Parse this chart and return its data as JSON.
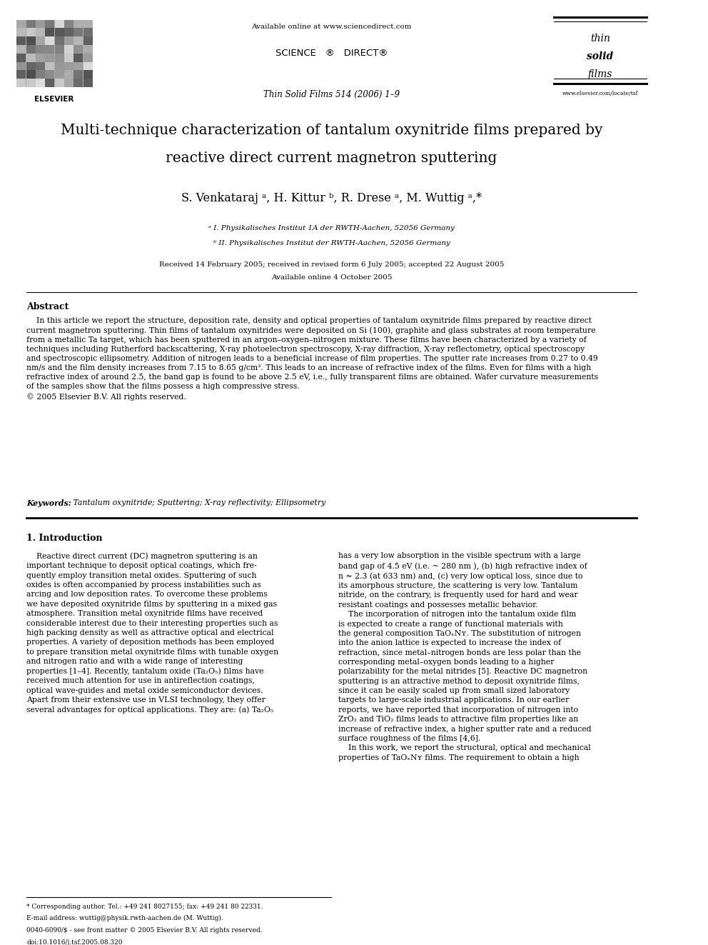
{
  "page_width": 9.92,
  "page_height": 13.23,
  "bg_color": "#ffffff",
  "top_text": "Available online at www.sciencedirect.com",
  "science_direct": "SCIENCE   ®  DIRECT®",
  "journal_ref": "Thin Solid Films 514 (2006) 1–9",
  "title_line1": "Multi-technique characterization of tantalum oxynitride films prepared by",
  "title_line2": "reactive direct current magnetron sputtering",
  "authors": "S. Venkataraj ᵃ, H. Kittur ᵇ, R. Drese ᵃ, M. Wuttig ᵃ,*",
  "affil_a": "ᵃ I. Physikalisches Institut 1A der RWTH-Aachen, 52056 Germany",
  "affil_b": "ᵇ II. Physikalisches Institut der RWTH-Aachen, 52056 Germany",
  "received": "Received 14 February 2005; received in revised form 6 July 2005; accepted 22 August 2005",
  "available": "Available online 4 October 2005",
  "abstract_title": "Abstract",
  "abstract_body": "    In this article we report the structure, deposition rate, density and optical properties of tantalum oxynitride films prepared by reactive direct\ncurrent magnetron sputtering. Thin films of tantalum oxynitrides were deposited on Si (100), graphite and glass substrates at room temperature\nfrom a metallic Ta target, which has been sputtered in an argon–oxygen–nitrogen mixture. These films have been characterized by a variety of\ntechniques including Rutherford backscattering, X-ray photoelectron spectroscopy, X-ray diffraction, X-ray reflectometry, optical spectroscopy\nand spectroscopic ellipsometry. Addition of nitrogen leads to a beneficial increase of film properties. The sputter rate increases from 0.27 to 0.49\nnm/s and the film density increases from 7.15 to 8.65 g/cm³. This leads to an increase of refractive index of the films. Even for films with a high\nrefractive index of around 2.5, the band gap is found to be above 2.5 eV, i.e., fully transparent films are obtained. Wafer curvature measurements\nof the samples show that the films possess a high compressive stress.\n© 2005 Elsevier B.V. All rights reserved.",
  "keywords_label": "Keywords:",
  "keywords_text": " Tantalum oxynitride; Sputtering; X-ray reflectivity; Ellipsometry",
  "section1_title": "1. Introduction",
  "intro_col1": "    Reactive direct current (DC) magnetron sputtering is an\nimportant technique to deposit optical coatings, which fre-\nquently employ transition metal oxides. Sputtering of such\noxides is often accompanied by process instabilities such as\narcing and low deposition rates. To overcome these problems\nwe have deposited oxynitride films by sputtering in a mixed gas\natmosphere. Transition metal oxynitride films have received\nconsiderable interest due to their interesting properties such as\nhigh packing density as well as attractive optical and electrical\nproperties. A variety of deposition methods has been employed\nto prepare transition metal oxynitride films with tunable oxygen\nand nitrogen ratio and with a wide range of interesting\nproperties [1–4]. Recently, tantalum oxide (Ta₂O₅) films have\nreceived much attention for use in antireflection coatings,\noptical wave-guides and metal oxide semiconductor devices.\nApart from their extensive use in VLSI technology, they offer\nseveral advantages for optical applications. They are: (a) Ta₂O₅",
  "intro_col2": "has a very low absorption in the visible spectrum with a large\nband gap of 4.5 eV (i.e. ~ 280 nm ), (b) high refractive index of\nn ≈ 2.3 (at 633 nm) and, (c) very low optical loss, since due to\nits amorphous structure, the scattering is very low. Tantalum\nnitride, on the contrary, is frequently used for hard and wear\nresistant coatings and possesses metallic behavior.\n    The incorporation of nitrogen into the tantalum oxide film\nis expected to create a range of functional materials with\nthe general composition TaOₓNʏ. The substitution of nitrogen\ninto the anion lattice is expected to increase the index of\nrefraction, since metal–nitrogen bonds are less polar than the\ncorresponding metal–oxygen bonds leading to a higher\npolarizability for the metal nitrides [5]. Reactive DC magnetron\nsputtering is an attractive method to deposit oxynitride films,\nsince it can be easily scaled up from small sized laboratory\ntargets to large-scale industrial applications. In our earlier\nreports, we have reported that incorporation of nitrogen into\nZrO₂ and TiO₂ films leads to attractive film properties like an\nincrease of refractive index, a higher sputter rate and a reduced\nsurface roughness of the films [4,6].\n    In this work, we report the structural, optical and mechanical\nproperties of TaOₓNʏ films. The requirement to obtain a high",
  "footer_corr": "* Corresponding author. Tel.: +49 241 8027155; fax: +49 241 80 22331.",
  "footer_email": "E-mail address: wuttig@physik.rwth-aachen.de (M. Wuttig).",
  "footer_issn": "0040-6090/$ - see front matter © 2005 Elsevier B.V. All rights reserved.",
  "footer_doi": "doi:10.1016/j.tsf.2005.08.320",
  "elsevier_text": "ELSEVIER",
  "tsf_line1": "thin",
  "tsf_line2": "solid",
  "tsf_line3": "films",
  "tsf_url": "www.elsevier.com/locate/tsf"
}
